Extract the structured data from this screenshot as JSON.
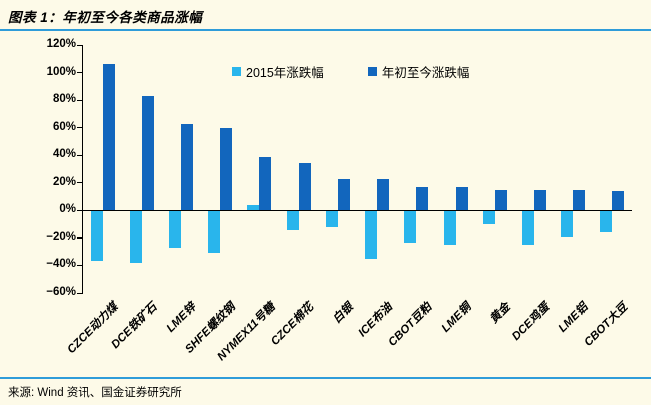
{
  "title": "图表 1：年初至今各类商品涨幅",
  "source": "来源: Wind 资讯、国金证券研究所",
  "colors": {
    "background": "#FDFAE8",
    "rule_blue": "#2F9CD9",
    "series_2015": "#29B5EC",
    "series_ytd": "#1266BD",
    "axis": "#000000"
  },
  "legend": [
    {
      "label": "2015年涨跌幅",
      "color_key": "series_2015"
    },
    {
      "label": "年初至今涨跌幅",
      "color_key": "series_ytd"
    }
  ],
  "chart_data": {
    "type": "bar",
    "title": "年初至今各类商品涨幅",
    "categories": [
      "CZCE动力煤",
      "DCE铁矿石",
      "LME锌",
      "SHFE螺纹钢",
      "NYMEX11号糖",
      "CZCE棉花",
      "白银",
      "ICE布油",
      "CBOT豆粕",
      "LME铜",
      "黄金",
      "DCE鸡蛋",
      "LME铝",
      "CBOT大豆"
    ],
    "series": [
      {
        "name": "2015年涨跌幅",
        "color_key": "series_2015",
        "values": [
          -37,
          -38,
          -27,
          -31,
          4,
          -14,
          -12,
          -35,
          -24,
          -25,
          -10,
          -25,
          -19,
          -16
        ]
      },
      {
        "name": "年初至今涨跌幅",
        "color_key": "series_ytd",
        "values": [
          106,
          83,
          63,
          60,
          39,
          34,
          23,
          23,
          17,
          17,
          15,
          15,
          15,
          14
        ]
      }
    ],
    "unit": "%",
    "ylim": [
      -60,
      120
    ],
    "ytick_step": 20,
    "ytick_labels": [
      "120%",
      "100%",
      "80%",
      "60%",
      "40%",
      "20%",
      "0%",
      "−20%",
      "−40%",
      "−60%"
    ],
    "legend_position": "top-center",
    "grid": false
  }
}
